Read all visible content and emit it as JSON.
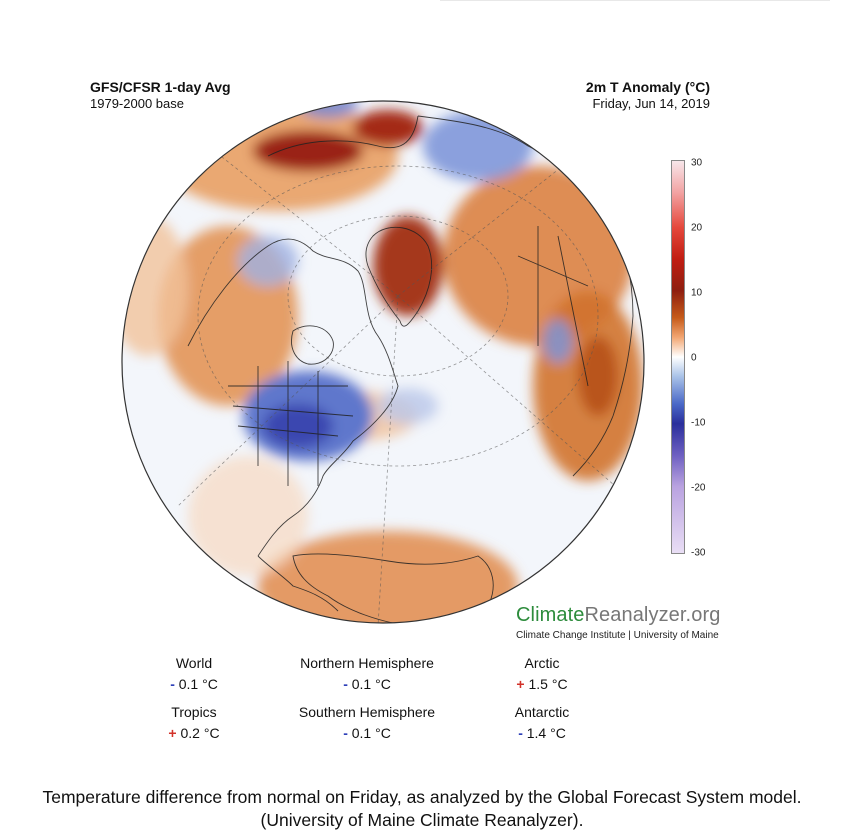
{
  "header": {
    "left_title": "GFS/CFSR 1-day Avg",
    "left_subtitle": "1979-2000 base",
    "right_title": "2m T Anomaly (°C)",
    "right_subtitle": "Friday, Jun 14, 2019"
  },
  "colorbar": {
    "ticks": [
      "30",
      "20",
      "10",
      "0",
      "-10",
      "-20",
      "-30"
    ],
    "range": [
      -30,
      30
    ]
  },
  "brand": {
    "climate": "Climate",
    "reanalyzer": "Reanalyzer.org",
    "subline": "Climate Change Institute | University of Maine"
  },
  "stats": [
    {
      "label": "World",
      "sign": "-",
      "value": "0.1 °C"
    },
    {
      "label": "Northern Hemisphere",
      "sign": "-",
      "value": "0.1 °C"
    },
    {
      "label": "Arctic",
      "sign": "+",
      "value": "1.5 °C"
    },
    {
      "label": "Tropics",
      "sign": "+",
      "value": "0.2 °C"
    },
    {
      "label": "Southern Hemisphere",
      "sign": "-",
      "value": "0.1 °C"
    },
    {
      "label": "Antarctic",
      "sign": "-",
      "value": "1.4 °C"
    }
  ],
  "caption": "Temperature difference from normal on Friday, as analyzed by the Global Forecast System model. (University of Maine Climate Reanalyzer).",
  "colors": {
    "warm": "#c65b1a",
    "hot": "#9a2414",
    "cool": "#4a68c7",
    "cold": "#2a2f9c",
    "neutral": "#ffffff"
  }
}
